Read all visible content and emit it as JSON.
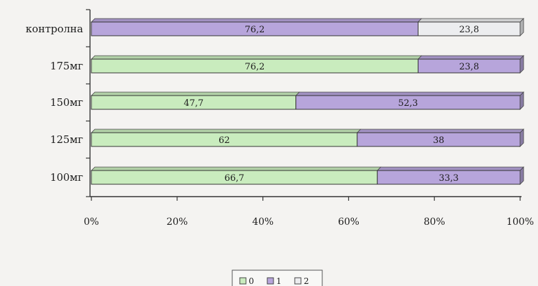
{
  "chart_data": {
    "type": "bar",
    "orientation": "horizontal",
    "stacked": "percent",
    "categories": [
      "контролна",
      "175мг",
      "150мг",
      "125мг",
      "100мг"
    ],
    "series": [
      {
        "name": "0",
        "values": [
          0,
          76.2,
          47.7,
          62,
          66.7
        ],
        "labels": [
          "",
          "76,2",
          "47,7",
          "62",
          "66,7"
        ]
      },
      {
        "name": "1",
        "values": [
          76.2,
          23.8,
          52.3,
          38,
          33.3
        ],
        "labels": [
          "76,2",
          "23,8",
          "52,3",
          "38",
          "33,3"
        ]
      },
      {
        "name": "2",
        "values": [
          23.8,
          0,
          0,
          0,
          0
        ],
        "labels": [
          "23,8",
          "",
          "",
          "",
          ""
        ]
      }
    ],
    "xlim": [
      0,
      100
    ],
    "x_ticks": [
      "0%",
      "20%",
      "40%",
      "60%",
      "80%",
      "100%"
    ],
    "legend_position": "bottom",
    "grid": false,
    "colors": {
      "0": "#c9ecbe",
      "1": "#b7a5db",
      "2": "#ecedef"
    }
  }
}
